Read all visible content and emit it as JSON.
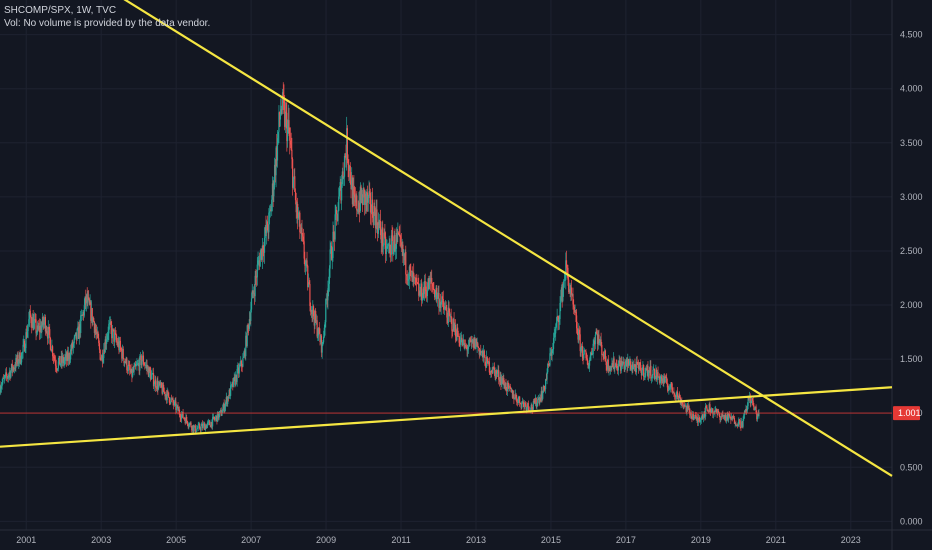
{
  "header": {
    "symbol_line": "SHCOMP/SPX, 1W, TVC",
    "volume_line": "Vol: No volume is provided by the data vendor."
  },
  "colors": {
    "background": "#131722",
    "grid": "#1e2230",
    "up": "#26a69a",
    "down": "#ef5350",
    "trendline": "#f5e642",
    "price_line": "#e53935",
    "axis_text": "#b2b5be"
  },
  "chart_data": {
    "type": "candlestick",
    "title": "SHCOMP/SPX",
    "interval": "1W",
    "source": "TVC",
    "xlim": [
      2000.3,
      2024.1
    ],
    "ylim": [
      -0.08,
      4.82
    ],
    "y_ticks": [
      {
        "value": 0.0,
        "label": "0.000"
      },
      {
        "value": 0.5,
        "label": "0.500"
      },
      {
        "value": 1.0,
        "label": "1.000"
      },
      {
        "value": 1.5,
        "label": "1.500"
      },
      {
        "value": 2.0,
        "label": "2.000"
      },
      {
        "value": 2.5,
        "label": "2.500"
      },
      {
        "value": 3.0,
        "label": "3.000"
      },
      {
        "value": 3.5,
        "label": "3.500"
      },
      {
        "value": 4.0,
        "label": "4.000"
      },
      {
        "value": 4.5,
        "label": "4.500"
      }
    ],
    "x_ticks": [
      {
        "value": 2001,
        "label": "2001"
      },
      {
        "value": 2003,
        "label": "2003"
      },
      {
        "value": 2005,
        "label": "2005"
      },
      {
        "value": 2007,
        "label": "2007"
      },
      {
        "value": 2009,
        "label": "2009"
      },
      {
        "value": 2011,
        "label": "2011"
      },
      {
        "value": 2013,
        "label": "2013"
      },
      {
        "value": 2015,
        "label": "2015"
      },
      {
        "value": 2017,
        "label": "2017"
      },
      {
        "value": 2019,
        "label": "2019"
      },
      {
        "value": 2021,
        "label": "2021"
      },
      {
        "value": 2023,
        "label": "2023"
      }
    ],
    "last_value": 1.001,
    "last_value_label": "1.001",
    "series": [
      {
        "name": "SHCOMP/SPX",
        "points": [
          {
            "x": 2000.3,
            "y": 1.25
          },
          {
            "x": 2000.6,
            "y": 1.4
          },
          {
            "x": 2000.9,
            "y": 1.55
          },
          {
            "x": 2001.1,
            "y": 1.9
          },
          {
            "x": 2001.3,
            "y": 1.75
          },
          {
            "x": 2001.5,
            "y": 1.85
          },
          {
            "x": 2001.8,
            "y": 1.45
          },
          {
            "x": 2002.1,
            "y": 1.5
          },
          {
            "x": 2002.4,
            "y": 1.75
          },
          {
            "x": 2002.6,
            "y": 2.05
          },
          {
            "x": 2002.8,
            "y": 1.85
          },
          {
            "x": 2003.0,
            "y": 1.5
          },
          {
            "x": 2003.2,
            "y": 1.8
          },
          {
            "x": 2003.5,
            "y": 1.6
          },
          {
            "x": 2003.8,
            "y": 1.35
          },
          {
            "x": 2004.1,
            "y": 1.5
          },
          {
            "x": 2004.4,
            "y": 1.3
          },
          {
            "x": 2004.8,
            "y": 1.15
          },
          {
            "x": 2005.1,
            "y": 1.0
          },
          {
            "x": 2005.5,
            "y": 0.85
          },
          {
            "x": 2005.9,
            "y": 0.9
          },
          {
            "x": 2006.2,
            "y": 1.0
          },
          {
            "x": 2006.5,
            "y": 1.25
          },
          {
            "x": 2006.8,
            "y": 1.5
          },
          {
            "x": 2007.0,
            "y": 2.0
          },
          {
            "x": 2007.2,
            "y": 2.4
          },
          {
            "x": 2007.5,
            "y": 2.8
          },
          {
            "x": 2007.8,
            "y": 3.85
          },
          {
            "x": 2008.0,
            "y": 3.6
          },
          {
            "x": 2008.2,
            "y": 2.9
          },
          {
            "x": 2008.4,
            "y": 2.5
          },
          {
            "x": 2008.6,
            "y": 2.0
          },
          {
            "x": 2008.9,
            "y": 1.6
          },
          {
            "x": 2009.1,
            "y": 2.4
          },
          {
            "x": 2009.3,
            "y": 2.85
          },
          {
            "x": 2009.55,
            "y": 3.5
          },
          {
            "x": 2009.75,
            "y": 2.9
          },
          {
            "x": 2010.0,
            "y": 3.0
          },
          {
            "x": 2010.3,
            "y": 2.85
          },
          {
            "x": 2010.6,
            "y": 2.5
          },
          {
            "x": 2010.9,
            "y": 2.6
          },
          {
            "x": 2011.2,
            "y": 2.3
          },
          {
            "x": 2011.5,
            "y": 2.1
          },
          {
            "x": 2011.8,
            "y": 2.2
          },
          {
            "x": 2012.1,
            "y": 2.0
          },
          {
            "x": 2012.4,
            "y": 1.8
          },
          {
            "x": 2012.7,
            "y": 1.6
          },
          {
            "x": 2013.0,
            "y": 1.65
          },
          {
            "x": 2013.3,
            "y": 1.45
          },
          {
            "x": 2013.6,
            "y": 1.35
          },
          {
            "x": 2013.9,
            "y": 1.2
          },
          {
            "x": 2014.2,
            "y": 1.1
          },
          {
            "x": 2014.5,
            "y": 1.05
          },
          {
            "x": 2014.8,
            "y": 1.2
          },
          {
            "x": 2015.0,
            "y": 1.55
          },
          {
            "x": 2015.2,
            "y": 1.9
          },
          {
            "x": 2015.4,
            "y": 2.35
          },
          {
            "x": 2015.6,
            "y": 1.95
          },
          {
            "x": 2015.8,
            "y": 1.6
          },
          {
            "x": 2016.0,
            "y": 1.45
          },
          {
            "x": 2016.2,
            "y": 1.75
          },
          {
            "x": 2016.5,
            "y": 1.45
          },
          {
            "x": 2016.8,
            "y": 1.45
          },
          {
            "x": 2017.1,
            "y": 1.45
          },
          {
            "x": 2017.4,
            "y": 1.4
          },
          {
            "x": 2017.7,
            "y": 1.38
          },
          {
            "x": 2018.0,
            "y": 1.3
          },
          {
            "x": 2018.3,
            "y": 1.2
          },
          {
            "x": 2018.6,
            "y": 1.05
          },
          {
            "x": 2018.9,
            "y": 0.93
          },
          {
            "x": 2019.2,
            "y": 1.05
          },
          {
            "x": 2019.5,
            "y": 0.98
          },
          {
            "x": 2019.8,
            "y": 0.95
          },
          {
            "x": 2020.1,
            "y": 0.9
          },
          {
            "x": 2020.3,
            "y": 1.15
          },
          {
            "x": 2020.5,
            "y": 0.98
          },
          {
            "x": 2020.55,
            "y": 1.0
          }
        ]
      }
    ],
    "trendlines": [
      {
        "name": "upper-trendline",
        "p1": [
          2000.3,
          5.54
        ],
        "p2": [
          2024.1,
          0.42
        ]
      },
      {
        "name": "lower-trendline",
        "p1": [
          2000.3,
          0.69
        ],
        "p2": [
          2024.1,
          1.24
        ]
      }
    ],
    "horizontal_line": {
      "name": "last-price-line",
      "y": 1.001
    },
    "grid": true,
    "legend": "none"
  }
}
